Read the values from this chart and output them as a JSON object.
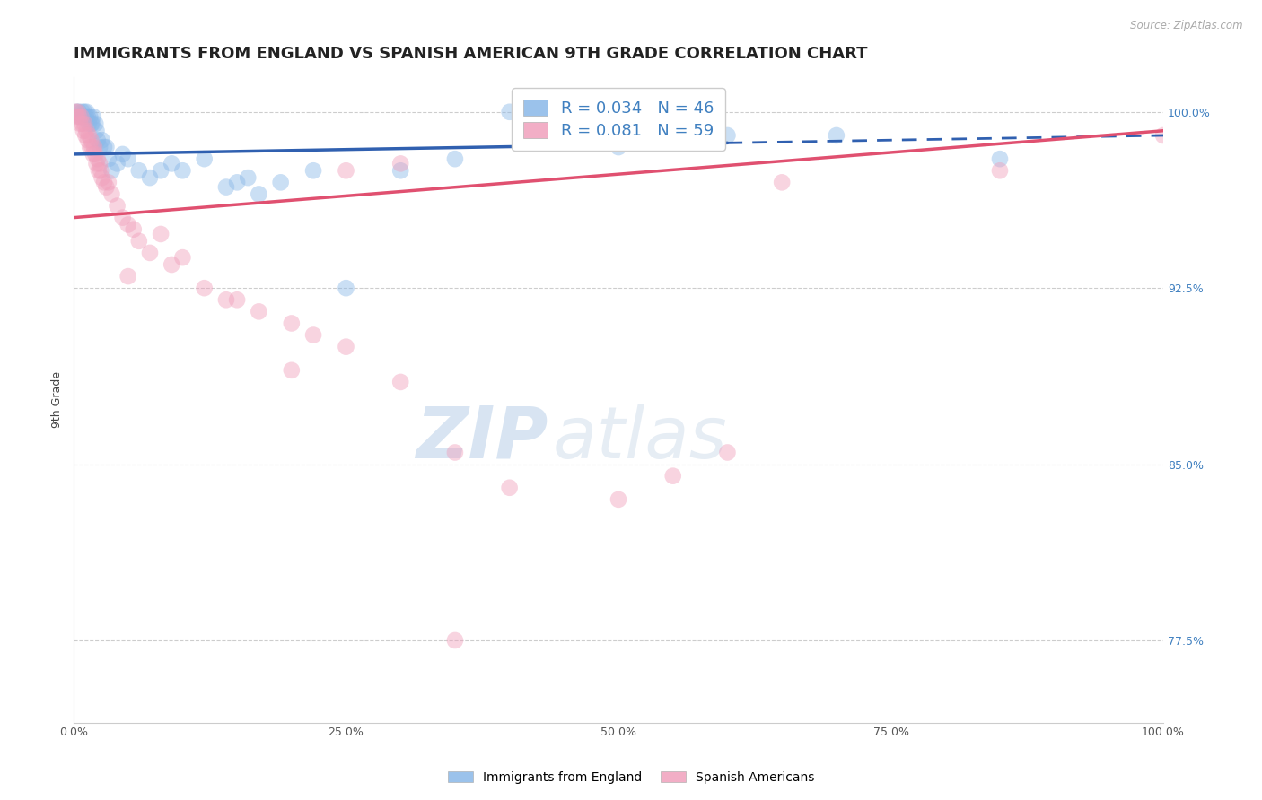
{
  "title": "IMMIGRANTS FROM ENGLAND VS SPANISH AMERICAN 9TH GRADE CORRELATION CHART",
  "source_text": "Source: ZipAtlas.com",
  "xlabel_bottom": "Immigrants from England",
  "xlabel_right": "Spanish Americans",
  "ylabel": "9th Grade",
  "x_min": 0.0,
  "x_max": 100.0,
  "y_min": 74.0,
  "y_max": 101.5,
  "y_ticks_right": [
    77.5,
    85.0,
    92.5,
    100.0
  ],
  "x_ticks": [
    0.0,
    25.0,
    50.0,
    75.0,
    100.0
  ],
  "blue_color": "#8ab8e8",
  "pink_color": "#f0a0bc",
  "blue_line_color": "#3060b0",
  "pink_line_color": "#e05070",
  "legend_R_blue": "R = 0.034",
  "legend_N_blue": "N = 46",
  "legend_R_pink": "R = 0.081",
  "legend_N_pink": "N = 59",
  "watermark_zip": "ZIP",
  "watermark_atlas": "atlas",
  "blue_scatter_x": [
    0.3,
    0.5,
    0.6,
    0.8,
    0.9,
    1.0,
    1.1,
    1.2,
    1.3,
    1.4,
    1.5,
    1.6,
    1.7,
    1.8,
    2.0,
    2.1,
    2.2,
    2.4,
    2.6,
    2.8,
    3.0,
    3.2,
    3.5,
    4.0,
    4.5,
    5.0,
    6.0,
    7.0,
    8.0,
    9.0,
    10.0,
    12.0,
    14.0,
    15.0,
    16.0,
    17.0,
    19.0,
    22.0,
    25.0,
    30.0,
    35.0,
    40.0,
    50.0,
    60.0,
    70.0,
    85.0
  ],
  "blue_scatter_y": [
    100.0,
    100.0,
    99.8,
    100.0,
    99.8,
    100.0,
    99.8,
    100.0,
    99.8,
    99.5,
    99.8,
    99.5,
    99.5,
    99.8,
    99.5,
    99.2,
    98.8,
    98.5,
    98.8,
    98.5,
    98.5,
    98.0,
    97.5,
    97.8,
    98.2,
    98.0,
    97.5,
    97.2,
    97.5,
    97.8,
    97.5,
    98.0,
    96.8,
    97.0,
    97.2,
    96.5,
    97.0,
    97.5,
    92.5,
    97.5,
    98.0,
    100.0,
    98.5,
    99.0,
    99.0,
    98.0
  ],
  "pink_scatter_x": [
    0.2,
    0.3,
    0.4,
    0.5,
    0.6,
    0.7,
    0.8,
    0.9,
    1.0,
    1.1,
    1.2,
    1.3,
    1.4,
    1.5,
    1.6,
    1.7,
    1.8,
    1.9,
    2.0,
    2.1,
    2.2,
    2.3,
    2.4,
    2.5,
    2.6,
    2.8,
    3.0,
    3.2,
    3.5,
    4.0,
    4.5,
    5.0,
    5.5,
    6.0,
    7.0,
    8.0,
    9.0,
    10.0,
    12.0,
    14.0,
    17.0,
    20.0,
    22.0,
    25.0,
    30.0,
    35.0,
    40.0,
    50.0,
    55.0,
    60.0,
    65.0,
    5.0,
    15.0,
    20.0,
    25.0,
    30.0,
    35.0,
    85.0,
    100.0
  ],
  "pink_scatter_y": [
    100.0,
    99.8,
    100.0,
    99.8,
    99.5,
    99.8,
    99.5,
    99.2,
    99.5,
    99.0,
    99.2,
    98.8,
    99.0,
    98.5,
    98.8,
    98.5,
    98.2,
    98.5,
    98.2,
    97.8,
    98.0,
    97.5,
    97.8,
    97.5,
    97.2,
    97.0,
    96.8,
    97.0,
    96.5,
    96.0,
    95.5,
    95.2,
    95.0,
    94.5,
    94.0,
    94.8,
    93.5,
    93.8,
    92.5,
    92.0,
    91.5,
    91.0,
    90.5,
    90.0,
    88.5,
    85.5,
    84.0,
    83.5,
    84.5,
    85.5,
    97.0,
    93.0,
    92.0,
    89.0,
    97.5,
    97.8,
    77.5,
    97.5,
    99.0
  ],
  "blue_trend_start_x": 0.0,
  "blue_trend_start_y": 98.2,
  "blue_trend_end_x": 100.0,
  "blue_trend_end_y": 99.0,
  "blue_trend_solid_end_x": 60.0,
  "pink_trend_start_x": 0.0,
  "pink_trend_start_y": 95.5,
  "pink_trend_end_x": 100.0,
  "pink_trend_end_y": 99.2,
  "background_color": "#ffffff",
  "grid_color": "#c8c8c8",
  "title_fontsize": 13,
  "axis_label_fontsize": 9,
  "tick_fontsize": 9,
  "scatter_size": 180,
  "scatter_alpha": 0.45
}
